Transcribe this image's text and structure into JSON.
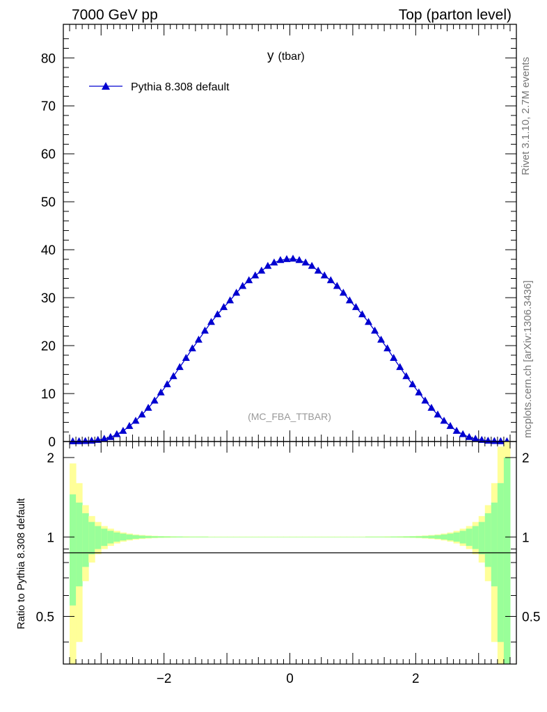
{
  "header": {
    "left": "7000 GeV pp",
    "right": "Top (parton level)"
  },
  "side": {
    "rivet": "Rivet 3.1.10,  2.7M events",
    "mcplots": "mcplots.cern.ch [arXiv:1306.3436]"
  },
  "main": {
    "title": "y",
    "title_sub": "(tbar)",
    "watermark": "(MC_FBA_TTBAR)"
  },
  "ratio": {
    "ylabel": "Ratio to Pythia 8.308 default"
  },
  "colors": {
    "series": "#0000d0",
    "band_inner": "#99ff99",
    "band_outer": "#ffff99"
  },
  "chart_data": [
    {
      "type": "scatter",
      "title": "y (tbar)",
      "xlim": [
        -3.6,
        3.6
      ],
      "ylim": [
        0,
        87
      ],
      "ticks_y": [
        0,
        10,
        20,
        30,
        40,
        50,
        60,
        70,
        80
      ],
      "legend": {
        "position": "top-left",
        "marker": "triangle"
      },
      "series": [
        {
          "name": "Pythia 8.308 default",
          "x": [
            -3.45,
            -3.35,
            -3.25,
            -3.15,
            -3.05,
            -2.95,
            -2.85,
            -2.75,
            -2.65,
            -2.55,
            -2.45,
            -2.35,
            -2.25,
            -2.15,
            -2.05,
            -1.95,
            -1.85,
            -1.75,
            -1.65,
            -1.55,
            -1.45,
            -1.35,
            -1.25,
            -1.15,
            -1.05,
            -0.95,
            -0.85,
            -0.75,
            -0.65,
            -0.55,
            -0.45,
            -0.35,
            -0.25,
            -0.15,
            -0.05,
            0.05,
            0.15,
            0.25,
            0.35,
            0.45,
            0.55,
            0.65,
            0.75,
            0.85,
            0.95,
            1.05,
            1.15,
            1.25,
            1.35,
            1.45,
            1.55,
            1.65,
            1.75,
            1.85,
            1.95,
            2.05,
            2.15,
            2.25,
            2.35,
            2.45,
            2.55,
            2.65,
            2.75,
            2.85,
            2.95,
            3.05,
            3.15,
            3.25,
            3.35,
            3.45
          ],
          "y": [
            0.02,
            0.04,
            0.08,
            0.15,
            0.3,
            0.55,
            0.9,
            1.5,
            2.2,
            3.2,
            4.3,
            5.6,
            7.0,
            8.5,
            10.2,
            11.9,
            13.6,
            15.5,
            17.4,
            19.4,
            21.2,
            23.1,
            24.9,
            26.5,
            28.0,
            29.4,
            31.0,
            32.4,
            33.6,
            34.6,
            35.6,
            36.6,
            37.3,
            37.8,
            38.0,
            38.1,
            37.8,
            37.3,
            36.6,
            35.6,
            34.6,
            33.6,
            32.4,
            31.0,
            29.4,
            28.0,
            26.5,
            24.9,
            23.1,
            21.2,
            19.4,
            17.4,
            15.5,
            13.6,
            11.9,
            10.2,
            8.5,
            7.0,
            5.6,
            4.3,
            3.2,
            2.2,
            1.5,
            0.9,
            0.55,
            0.3,
            0.15,
            0.08,
            0.04,
            0.02
          ]
        }
      ]
    },
    {
      "type": "area",
      "ylabel": "Ratio to Pythia 8.308 default",
      "xlim": [
        -3.6,
        3.6
      ],
      "ylim": [
        0.33,
        2.3
      ],
      "ticks_y": [
        0.5,
        1,
        2
      ],
      "ticks_x": [
        -2,
        0,
        2
      ],
      "reference": 1,
      "bins": [
        -3.5,
        -3.4,
        -3.3,
        -3.2,
        -3.1,
        -3.0,
        -2.9,
        -2.8,
        -2.7,
        -2.6,
        -2.5,
        -2.4,
        -2.3,
        -2.2,
        -2.1,
        -2.0,
        -1.9,
        -1.8,
        -1.7,
        -1.6,
        -1.5,
        -1.4,
        -1.3,
        -1.2,
        -1.1,
        -1.0,
        -0.9,
        -0.8,
        -0.7,
        -0.6,
        -0.5,
        -0.4,
        -0.3,
        -0.2,
        -0.1,
        0.0,
        0.1,
        0.2,
        0.3,
        0.4,
        0.5,
        0.6,
        0.7,
        0.8,
        0.9,
        1.0,
        1.1,
        1.2,
        1.3,
        1.4,
        1.5,
        1.6,
        1.7,
        1.8,
        1.9,
        2.0,
        2.1,
        2.2,
        2.3,
        2.4,
        2.5,
        2.6,
        2.7,
        2.8,
        2.9,
        3.0,
        3.1,
        3.2,
        3.3,
        3.4,
        3.5
      ],
      "band_inner_half_width": [
        0.45,
        0.35,
        0.23,
        0.14,
        0.1,
        0.075,
        0.055,
        0.04,
        0.03,
        0.022,
        0.016,
        0.012,
        0.009,
        0.007,
        0.006,
        0.005,
        0.004,
        0.004,
        0.003,
        0.003,
        0.003,
        0.003,
        0.002,
        0.002,
        0.002,
        0.002,
        0.002,
        0.002,
        0.002,
        0.002,
        0.002,
        0.002,
        0.002,
        0.002,
        0.002,
        0.002,
        0.002,
        0.002,
        0.002,
        0.002,
        0.002,
        0.002,
        0.002,
        0.002,
        0.002,
        0.002,
        0.002,
        0.003,
        0.003,
        0.003,
        0.003,
        0.004,
        0.004,
        0.005,
        0.006,
        0.007,
        0.009,
        0.012,
        0.016,
        0.022,
        0.03,
        0.04,
        0.055,
        0.075,
        0.1,
        0.14,
        0.23,
        0.35,
        0.6,
        1.0
      ],
      "band_outer_half_width": [
        0.9,
        0.6,
        0.32,
        0.2,
        0.14,
        0.1,
        0.075,
        0.055,
        0.04,
        0.03,
        0.022,
        0.017,
        0.013,
        0.01,
        0.008,
        0.007,
        0.006,
        0.005,
        0.005,
        0.004,
        0.004,
        0.004,
        0.003,
        0.003,
        0.003,
        0.003,
        0.003,
        0.003,
        0.003,
        0.003,
        0.003,
        0.003,
        0.003,
        0.003,
        0.003,
        0.003,
        0.003,
        0.003,
        0.003,
        0.003,
        0.003,
        0.003,
        0.003,
        0.003,
        0.003,
        0.003,
        0.003,
        0.004,
        0.004,
        0.004,
        0.005,
        0.005,
        0.006,
        0.007,
        0.008,
        0.01,
        0.013,
        0.017,
        0.022,
        0.03,
        0.04,
        0.055,
        0.075,
        0.1,
        0.14,
        0.2,
        0.32,
        0.6,
        1.2,
        1.5
      ]
    }
  ]
}
